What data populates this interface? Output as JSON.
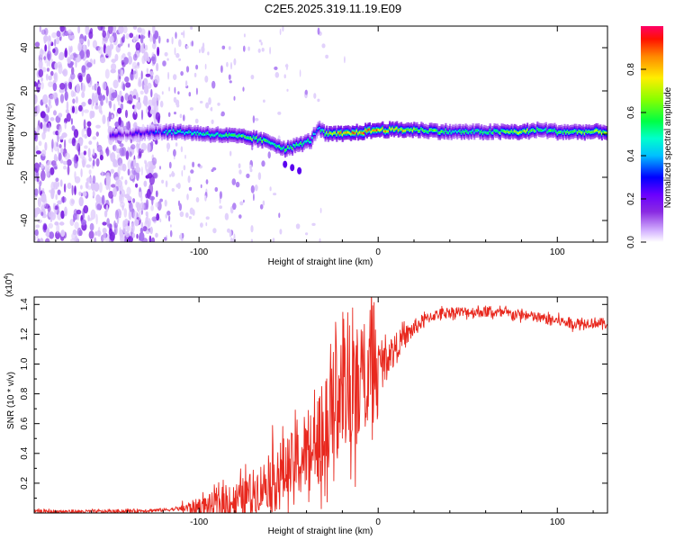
{
  "title": "C2E5.2025.319.11.19.E09",
  "chart_data": [
    {
      "type": "heatmap",
      "title": "C2E5.2025.319.11.19.E09",
      "xlabel": "Height of straight line (km)",
      "ylabel": "Frequency (Hz)",
      "xlim": [
        -192,
        128
      ],
      "ylim": [
        -50,
        50
      ],
      "x_ticks": [
        -100,
        0,
        100
      ],
      "y_ticks": [
        -40,
        -20,
        0,
        20,
        40
      ],
      "colorbar": {
        "label": "Normalized spectral amplitude",
        "range": [
          0,
          1
        ],
        "ticks": [
          0.0,
          0.2,
          0.4,
          0.6,
          0.8
        ],
        "colors": [
          "#ffffff",
          "#d6b6ff",
          "#8a2be2",
          "#6a00ff",
          "#0000ff",
          "#00ffff",
          "#00ff66",
          "#66ff00",
          "#ffff00",
          "#ff8000",
          "#ff0000",
          "#ff0055"
        ]
      },
      "ridge": {
        "x": [
          -140,
          -125,
          -110,
          -95,
          -80,
          -70,
          -60,
          -52,
          -45,
          -38,
          -34,
          -30,
          -20,
          -10,
          0,
          20,
          40,
          60,
          80,
          90,
          100,
          128
        ],
        "freq": [
          0,
          1,
          1,
          0,
          -1,
          -2,
          -4,
          -7,
          -5,
          -3,
          3,
          0,
          0,
          1,
          2,
          2,
          1,
          1,
          1,
          2,
          1,
          1
        ],
        "amplitude": [
          0.3,
          0.5,
          0.5,
          0.55,
          0.6,
          0.65,
          0.55,
          0.6,
          0.6,
          0.5,
          0.4,
          0.7,
          0.85,
          0.9,
          0.9,
          0.7,
          0.55,
          0.55,
          0.75,
          0.55,
          0.6,
          0.7
        ]
      }
    },
    {
      "type": "line",
      "xlabel": "Height of straight line (km)",
      "ylabel": "SNR (10 * v/v)",
      "y_multiplier": "(x10",
      "y_multiplier_exp": "4",
      "xlim": [
        -192,
        128
      ],
      "ylim": [
        0,
        1.45
      ],
      "x_ticks": [
        -100,
        0,
        100
      ],
      "y_ticks": [
        0.2,
        0.4,
        0.6,
        0.8,
        1.0,
        1.2,
        1.4
      ],
      "series": [
        {
          "name": "SNR",
          "color": "#e8281e",
          "x": [
            -192,
            -150,
            -120,
            -100,
            -90,
            -80,
            -70,
            -60,
            -50,
            -40,
            -35,
            -30,
            -25,
            -20,
            -15,
            -10,
            -5,
            0,
            5,
            10,
            15,
            20,
            25,
            30,
            35,
            40,
            50,
            60,
            70,
            80,
            90,
            100,
            105,
            110,
            120,
            128
          ],
          "y": [
            0.01,
            0.01,
            0.02,
            0.04,
            0.06,
            0.08,
            0.14,
            0.22,
            0.3,
            0.38,
            0.5,
            0.62,
            0.72,
            0.8,
            0.86,
            0.9,
            0.95,
            1.0,
            1.05,
            1.12,
            1.18,
            1.24,
            1.29,
            1.32,
            1.34,
            1.35,
            1.35,
            1.35,
            1.34,
            1.33,
            1.31,
            1.29,
            1.28,
            1.27,
            1.28,
            1.27
          ]
        }
      ]
    }
  ]
}
